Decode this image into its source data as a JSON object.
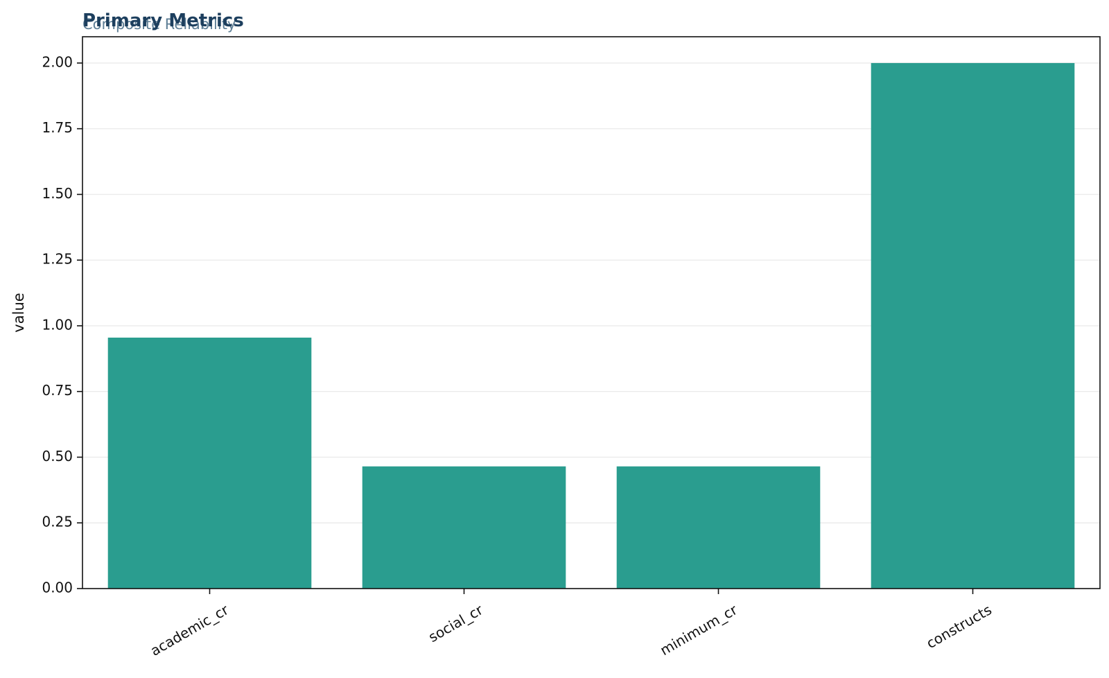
{
  "chart_data": {
    "type": "bar",
    "title": "Primary Metrics",
    "subtitle": "Composite Reliability",
    "xlabel": "",
    "ylabel": "value",
    "categories": [
      "academic_cr",
      "social_cr",
      "minimum_cr",
      "constructs"
    ],
    "values": [
      0.955,
      0.465,
      0.465,
      2.0
    ],
    "ylim": [
      0,
      2.1
    ],
    "yticks": [
      0.0,
      0.25,
      0.5,
      0.75,
      1.0,
      1.25,
      1.5,
      1.75,
      2.0
    ],
    "ytick_labels": [
      "0.00",
      "0.25",
      "0.50",
      "0.75",
      "1.00",
      "1.25",
      "1.50",
      "1.75",
      "2.00"
    ],
    "grid": "horizontal",
    "legend": "none",
    "colors": {
      "bar": "#2a9d8f",
      "title": "#1d3f5e",
      "subtitle": "#5f7f96",
      "grid": "#ebebeb",
      "axis": "#111111"
    }
  }
}
